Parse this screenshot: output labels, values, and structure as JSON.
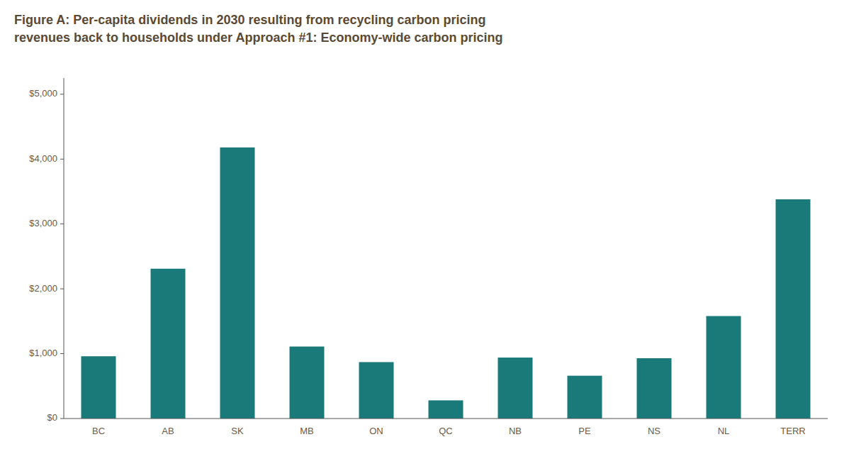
{
  "chart_data": {
    "type": "bar",
    "title": "Figure A: Per-capita dividends in 2030 resulting from recycling carbon pricing\nrevenues back to households under Approach #1: Economy-wide carbon pricing",
    "categories": [
      "BC",
      "AB",
      "SK",
      "MB",
      "ON",
      "QC",
      "NB",
      "PE",
      "NS",
      "NL",
      "TERR"
    ],
    "values": [
      960,
      2310,
      4180,
      1110,
      870,
      280,
      940,
      660,
      930,
      1580,
      3380
    ],
    "color": "#1a7a7a",
    "ylim": [
      0,
      5250
    ],
    "yticks": [
      {
        "value": 0,
        "label": "$0"
      },
      {
        "value": 1000,
        "label": "$1,000"
      },
      {
        "value": 2000,
        "label": "$2,000"
      },
      {
        "value": 3000,
        "label": "$3,000"
      },
      {
        "value": 4000,
        "label": "$4,000"
      },
      {
        "value": 5000,
        "label": "$5,000"
      }
    ],
    "grid": false
  }
}
